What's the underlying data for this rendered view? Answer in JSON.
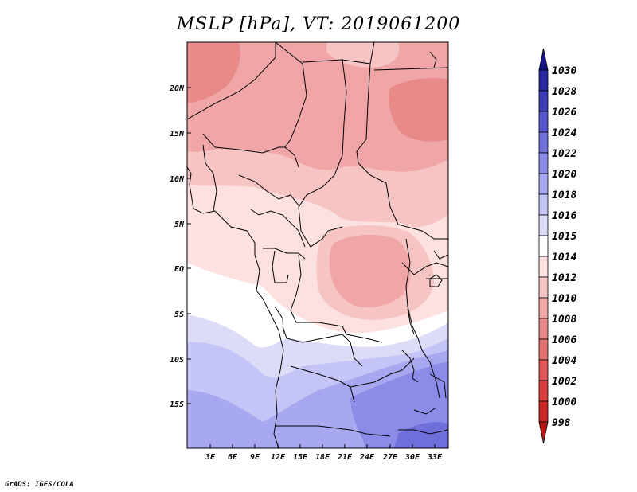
{
  "title": "MSLP [hPa], VT: 2019061200",
  "credit": "GrADS: IGES/COLA",
  "lat_labels": [
    "20N",
    "15N",
    "10N",
    "5N",
    "EQ",
    "5S",
    "10S",
    "15S"
  ],
  "lon_labels": [
    "3E",
    "6E",
    "9E",
    "12E",
    "15E",
    "18E",
    "21E",
    "24E",
    "27E",
    "30E",
    "33E"
  ],
  "colorbar": {
    "labels": [
      "998",
      "1000",
      "1002",
      "1004",
      "1006",
      "1008",
      "1010",
      "1012",
      "1014",
      "1015",
      "1016",
      "1018",
      "1020",
      "1022",
      "1024",
      "1026",
      "1028",
      "1030"
    ],
    "colors": [
      "#b81616",
      "#cc2626",
      "#d83c3c",
      "#e05656",
      "#e57070",
      "#e98a8a",
      "#f0a6a6",
      "#f7c4c4",
      "#fde0e0",
      "#ffffff",
      "#dcdcf8",
      "#c4c4f6",
      "#a8a8f0",
      "#8c8ce8",
      "#7070dc",
      "#5656cc",
      "#3c3cb8",
      "#2828a4",
      "#16168a"
    ]
  },
  "map_fields": {
    "colors": {
      "p1008": "#e98a8a",
      "p1010": "#f0a6a6",
      "p1012": "#f7c4c4",
      "p1014": "#fde0e0",
      "p1015": "#ffffff",
      "p1016": "#dcdcf8",
      "p1018": "#c4c4f6",
      "p1020": "#a8a8f0",
      "p1022": "#8c8ce8",
      "p1024": "#7070dc"
    }
  }
}
